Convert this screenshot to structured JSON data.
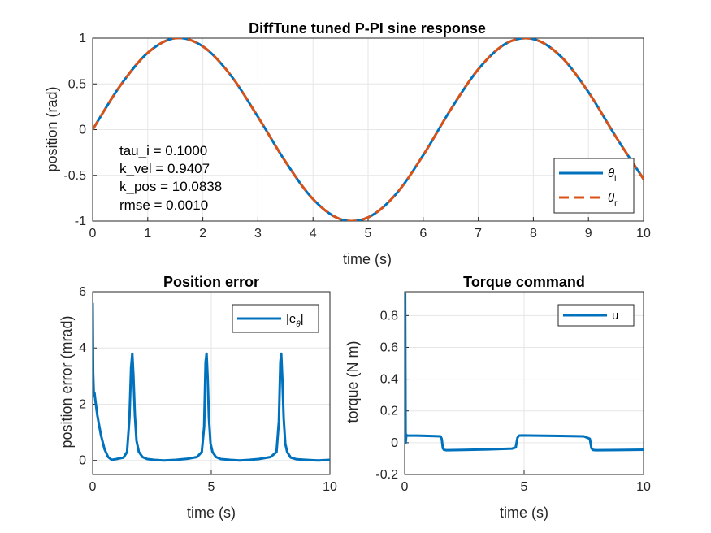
{
  "chart_data": [
    {
      "type": "line",
      "title": "DiffTune tuned P-PI sine response",
      "xlabel": "time (s)",
      "ylabel": "position (rad)",
      "xlim": [
        0,
        10
      ],
      "ylim": [
        -1,
        1
      ],
      "xticks": [
        "0",
        "1",
        "2",
        "3",
        "4",
        "5",
        "6",
        "7",
        "8",
        "9",
        "10"
      ],
      "yticks": [
        "-1",
        "-0.5",
        "0",
        "0.5",
        "1"
      ],
      "grid": true,
      "legend_position": "bottom-right",
      "series": [
        {
          "name": "θ",
          "sub": "l",
          "color": "#0072BD",
          "style": "solid",
          "x": [
            0,
            0.5,
            1,
            1.5,
            2,
            2.5,
            3,
            3.5,
            4,
            4.5,
            5,
            5.5,
            6,
            6.5,
            7,
            7.5,
            8,
            8.5,
            9,
            9.5,
            10
          ],
          "y": [
            0,
            0.48,
            0.84,
            1.0,
            0.91,
            0.6,
            0.14,
            -0.35,
            -0.76,
            -0.98,
            -0.96,
            -0.71,
            -0.28,
            0.22,
            0.66,
            0.94,
            0.99,
            0.8,
            0.41,
            -0.08,
            -0.54
          ]
        },
        {
          "name": "θ",
          "sub": "r",
          "color": "#D95319",
          "style": "dashed",
          "x": [
            0,
            0.5,
            1,
            1.5,
            2,
            2.5,
            3,
            3.5,
            4,
            4.5,
            5,
            5.5,
            6,
            6.5,
            7,
            7.5,
            8,
            8.5,
            9,
            9.5,
            10
          ],
          "y": [
            0,
            0.48,
            0.84,
            1.0,
            0.91,
            0.6,
            0.14,
            -0.35,
            -0.76,
            -0.98,
            -0.96,
            -0.71,
            -0.28,
            0.22,
            0.66,
            0.94,
            0.99,
            0.8,
            0.41,
            -0.08,
            -0.54
          ]
        }
      ],
      "annotations": [
        "tau_i = 0.1000",
        "k_vel = 0.9407",
        "k_pos = 10.0838",
        "rmse = 0.0010"
      ]
    },
    {
      "type": "line",
      "title": "Position error",
      "xlabel": "time (s)",
      "ylabel": "position error (mrad)",
      "xlim": [
        0,
        10
      ],
      "ylim": [
        -0.5,
        6
      ],
      "xticks": [
        "0",
        "5",
        "10"
      ],
      "yticks": [
        "0",
        "2",
        "4",
        "6"
      ],
      "grid": true,
      "legend_position": "top-right",
      "series": [
        {
          "name": "|e",
          "sub": "θ",
          "suffix": "|",
          "color": "#0072BD",
          "style": "solid",
          "x": [
            0,
            0.02,
            0.05,
            0.08,
            0.12,
            0.2,
            0.35,
            0.5,
            0.65,
            0.8,
            1.0,
            1.3,
            1.45,
            1.55,
            1.62,
            1.67,
            1.72,
            1.78,
            1.85,
            1.95,
            2.1,
            2.3,
            2.6,
            3.0,
            3.5,
            4.0,
            4.4,
            4.6,
            4.7,
            4.76,
            4.8,
            4.85,
            4.9,
            4.97,
            5.05,
            5.2,
            5.4,
            5.8,
            6.2,
            6.6,
            7.0,
            7.5,
            7.75,
            7.85,
            7.91,
            7.95,
            8.0,
            8.05,
            8.12,
            8.2,
            8.35,
            8.6,
            9.0,
            9.5,
            10.0
          ],
          "y": [
            5.6,
            3.1,
            2.3,
            2.4,
            2.1,
            1.6,
            0.9,
            0.4,
            0.12,
            0.02,
            0.05,
            0.1,
            0.3,
            1.5,
            3.3,
            3.8,
            3.0,
            1.6,
            0.7,
            0.3,
            0.12,
            0.05,
            0.02,
            0.0,
            0.02,
            0.06,
            0.12,
            0.3,
            1.2,
            3.5,
            3.8,
            2.9,
            1.5,
            0.6,
            0.3,
            0.12,
            0.05,
            0.02,
            0.0,
            0.02,
            0.05,
            0.12,
            0.3,
            1.4,
            3.5,
            3.8,
            2.8,
            1.5,
            0.6,
            0.3,
            0.1,
            0.04,
            0.02,
            0.0,
            0.02
          ]
        }
      ]
    },
    {
      "type": "line",
      "title": "Torque command",
      "xlabel": "time (s)",
      "ylabel": "torque (N m)",
      "xlim": [
        0,
        10
      ],
      "ylim": [
        -0.2,
        0.95
      ],
      "xticks": [
        "0",
        "5",
        "10"
      ],
      "yticks": [
        "-0.2",
        "0",
        "0.2",
        "0.4",
        "0.6",
        "0.8"
      ],
      "grid": true,
      "legend_position": "top-right",
      "series": [
        {
          "name": "u",
          "color": "#0072BD",
          "style": "solid",
          "x": [
            0,
            0.02,
            0.04,
            0.07,
            0.1,
            0.5,
            1.0,
            1.5,
            1.55,
            1.6,
            1.65,
            1.75,
            2.5,
            3.5,
            4.5,
            4.65,
            4.72,
            4.78,
            4.9,
            5.5,
            6.5,
            7.5,
            7.75,
            7.82,
            7.88,
            8.0,
            9.0,
            10.0
          ],
          "y": [
            0.0,
            0.94,
            0.0,
            0.05,
            0.045,
            0.045,
            0.043,
            0.04,
            0.025,
            -0.035,
            -0.045,
            -0.047,
            -0.045,
            -0.042,
            -0.037,
            -0.03,
            0.03,
            0.045,
            0.046,
            0.045,
            0.043,
            0.04,
            0.025,
            -0.035,
            -0.045,
            -0.047,
            -0.046,
            -0.044
          ]
        }
      ]
    }
  ]
}
